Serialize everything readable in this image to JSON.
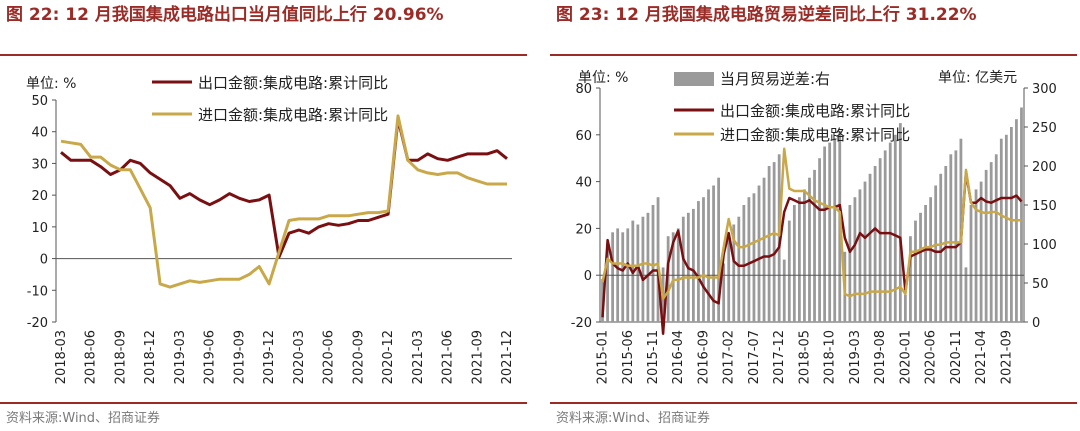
{
  "colors": {
    "title": "#9b2b26",
    "export_line": "#7a0f12",
    "import_line": "#c9a84a",
    "bars": "#9a9a9a",
    "source_text": "#7a7a7a"
  },
  "left": {
    "title": "图 22:  12 月我国集成电路出口当月值同比上行 20.96%",
    "unit": "单位:  %",
    "source": "资料来源:Wind、招商证券",
    "chart_data": {
      "type": "line",
      "title": "图 22:  12 月我国集成电路出口当月值同比上行 20.96%",
      "ylim": [
        -20,
        50
      ],
      "yticks": [
        -20,
        -10,
        0,
        10,
        20,
        30,
        40,
        50
      ],
      "grid": false,
      "legend_position": "top",
      "x_labels": [
        "2018-03",
        "2018-06",
        "2018-09",
        "2018-12",
        "2019-03",
        "2019-06",
        "2019-09",
        "2019-12",
        "2020-03",
        "2020-06",
        "2020-09",
        "2020-12",
        "2021-03",
        "2021-06",
        "2021-09",
        "2021-12"
      ],
      "x": [
        "2018-03",
        "2018-04",
        "2018-05",
        "2018-06",
        "2018-07",
        "2018-08",
        "2018-09",
        "2018-10",
        "2018-11",
        "2018-12",
        "2019-01",
        "2019-02",
        "2019-03",
        "2019-04",
        "2019-05",
        "2019-06",
        "2019-07",
        "2019-08",
        "2019-09",
        "2019-10",
        "2019-11",
        "2019-12",
        "2020-01",
        "2020-02",
        "2020-03",
        "2020-04",
        "2020-05",
        "2020-06",
        "2020-07",
        "2020-08",
        "2020-09",
        "2020-10",
        "2020-11",
        "2020-12",
        "2021-01",
        "2021-02",
        "2021-03",
        "2021-04",
        "2021-05",
        "2021-06",
        "2021-07",
        "2021-08",
        "2021-09",
        "2021-10",
        "2021-11",
        "2021-12"
      ],
      "series": [
        {
          "name": "出口金额:集成电路:累计同比",
          "values": [
            33.5,
            31,
            31,
            31,
            29,
            26.5,
            28,
            31,
            30,
            27,
            25,
            23,
            19,
            20.5,
            18.5,
            17,
            18.5,
            20.5,
            19,
            18,
            18.5,
            20,
            0.5,
            8,
            9,
            8,
            10,
            11,
            10.5,
            11,
            12,
            12,
            13,
            14,
            44,
            31,
            31,
            33,
            31.5,
            31,
            32,
            33,
            33,
            33,
            34,
            31.5
          ]
        },
        {
          "name": "进口金额:集成电路:累计同比",
          "values": [
            37,
            36.5,
            36,
            32,
            32,
            29.5,
            28,
            28,
            22,
            16,
            -8,
            -9,
            -8,
            -7,
            -7.5,
            -7,
            -6.5,
            -6.5,
            -6.5,
            -5,
            -2.5,
            -8,
            2,
            12,
            12.5,
            12.5,
            12.5,
            13.5,
            13.5,
            13.5,
            14,
            14.5,
            14.5,
            15,
            45,
            31,
            28,
            27,
            26.5,
            27,
            27,
            25.5,
            24.5,
            23.5,
            23.5,
            23.5
          ]
        }
      ]
    }
  },
  "right": {
    "title": "图 23:  12 月我国集成电路贸易逆差同比上行 31.22%",
    "unit_left": "单位:  %",
    "unit_right": "单位:  亿美元",
    "source": "资料来源:Wind、招商证券",
    "chart_data": {
      "type": "bar",
      "title": "图 23:  12 月我国集成电路贸易逆差同比上行 31.22%",
      "ylim": [
        -20,
        80
      ],
      "yticks": [
        -20,
        0,
        20,
        40,
        60,
        80
      ],
      "y2lim": [
        0,
        300
      ],
      "y2ticks": [
        0,
        50,
        100,
        150,
        200,
        250,
        300
      ],
      "grid": false,
      "legend_position": "top",
      "x_labels": [
        "2015-01",
        "2015-06",
        "2015-11",
        "2016-04",
        "2016-09",
        "2017-02",
        "2017-07",
        "2017-12",
        "2018-05",
        "2018-10",
        "2019-03",
        "2019-08",
        "2020-01",
        "2020-06",
        "2020-11",
        "2021-04",
        "2021-09"
      ],
      "x_start": "2015-01",
      "x_end": "2021-12",
      "series": [
        {
          "name": "当月贸易逆差:右",
          "axis": "right",
          "values": [
            55,
            100,
            115,
            120,
            115,
            120,
            130,
            125,
            135,
            140,
            150,
            160,
            70,
            110,
            115,
            120,
            135,
            140,
            145,
            155,
            160,
            170,
            175,
            185,
            75,
            105,
            125,
            135,
            150,
            160,
            165,
            175,
            185,
            200,
            205,
            215,
            80,
            130,
            150,
            160,
            170,
            185,
            195,
            210,
            225,
            230,
            235,
            245,
            90,
            150,
            160,
            170,
            180,
            190,
            200,
            210,
            220,
            230,
            240,
            255,
            35,
            110,
            130,
            140,
            150,
            160,
            175,
            190,
            200,
            215,
            220,
            235,
            70,
            150,
            170,
            180,
            195,
            205,
            215,
            235,
            240,
            250,
            260,
            275
          ]
        },
        {
          "name": "出口金额:集成电路:累计同比",
          "axis": "left",
          "values": [
            -18,
            15,
            5,
            3,
            2,
            5,
            1,
            4,
            -2,
            0,
            2,
            2,
            -25,
            5,
            14,
            19,
            7,
            3,
            2,
            -1,
            -5,
            -8,
            -11,
            -12,
            9,
            18,
            6,
            4,
            4,
            5,
            6,
            7,
            8,
            8,
            9,
            12,
            27,
            33,
            32,
            31,
            31,
            32,
            30,
            28,
            28,
            29,
            29,
            30,
            16,
            10,
            13,
            18,
            16,
            18,
            20,
            18,
            18,
            18,
            17,
            16,
            -7,
            8,
            9,
            10,
            11,
            11,
            10,
            10,
            12,
            12,
            12,
            14,
            44,
            31,
            31,
            33,
            31.5,
            31,
            32,
            33,
            33,
            33,
            34,
            31.5
          ]
        },
        {
          "name": "进口金额:集成电路:累计同比",
          "axis": "left",
          "values": [
            -3,
            7,
            5,
            5,
            5,
            4,
            4,
            4,
            5,
            5,
            4,
            5,
            -10,
            -7,
            -2,
            -2,
            -1,
            -1,
            -1,
            -1,
            0,
            -1,
            -1,
            -1,
            12,
            24,
            15,
            12,
            12,
            13,
            14,
            15,
            16,
            17,
            18,
            17,
            54,
            37,
            36,
            36,
            36,
            34,
            32,
            31,
            30,
            29,
            29,
            27,
            -8,
            -9,
            -8,
            -8,
            -8,
            -7,
            -7,
            -7,
            -7,
            -7,
            -6,
            -5,
            -8,
            10,
            10,
            11,
            12,
            12,
            13,
            13,
            14,
            14,
            14,
            14,
            45,
            31,
            28,
            27,
            26.5,
            27,
            27,
            25.5,
            24.5,
            23.5,
            23.5,
            23.5
          ]
        }
      ]
    }
  }
}
